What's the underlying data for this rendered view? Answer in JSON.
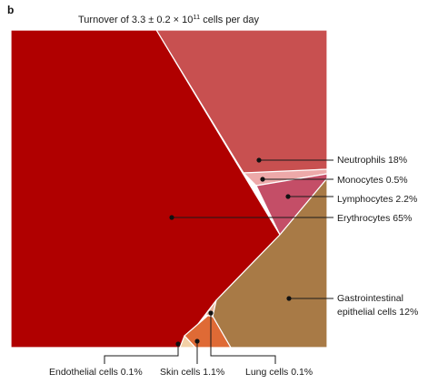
{
  "panel_label": "b",
  "chart_data": {
    "type": "treemap",
    "title": {
      "prefix": "Turnover of 3.3 ± 0.2 × 10",
      "superscript": "11",
      "suffix": " cells per day"
    },
    "total_cells_per_day": 330000000000.0,
    "total_uncertainty": 20000000000.0,
    "unit": "cells per day",
    "series": [
      {
        "name": "Erythrocytes",
        "percent": 65,
        "label": "Erythrocytes 65%",
        "color": "#b00000"
      },
      {
        "name": "Neutrophils",
        "percent": 18,
        "label": "Neutrophils 18%",
        "color": "#c85050"
      },
      {
        "name": "Gastrointestinal epithelial cells",
        "percent": 12,
        "label_lines": [
          "Gastrointestinal",
          "epithelial cells 12%"
        ],
        "color": "#a87a46"
      },
      {
        "name": "Lymphocytes",
        "percent": 2.2,
        "label": "Lymphocytes 2.2%",
        "color": "#c44e67"
      },
      {
        "name": "Skin cells",
        "percent": 1.1,
        "label": "Skin cells 1.1%",
        "color": "#df6a35"
      },
      {
        "name": "Monocytes",
        "percent": 0.5,
        "label": "Monocytes 0.5%",
        "color": "#eda9a9"
      },
      {
        "name": "Endothelial cells",
        "percent": 0.1,
        "label": "Endothelial cells 0.1%",
        "color": "#f2d0a6"
      },
      {
        "name": "Lung cells",
        "percent": 0.1,
        "label": "Lung cells 0.1%",
        "color": "#e9b39a"
      }
    ]
  }
}
